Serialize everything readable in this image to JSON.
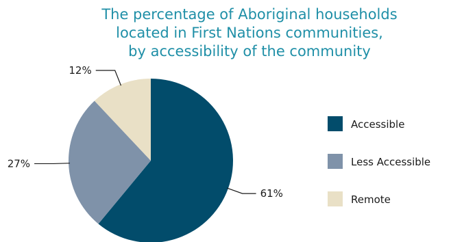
{
  "chart_data": {
    "type": "pie",
    "title_lines": [
      "The percentage of Aboriginal households",
      "located in First Nations communities,",
      "by accessibility of the community"
    ],
    "slices": [
      {
        "label": "Accessible",
        "value": 61,
        "value_label": "61%",
        "color": "#024c6b"
      },
      {
        "label": "Less Accessible",
        "value": 27,
        "value_label": "27%",
        "color": "#7f92a9"
      },
      {
        "label": "Remote",
        "value": 12,
        "value_label": "12%",
        "color": "#e9e0c6"
      }
    ],
    "legend_position": "right",
    "start_angle": "12 o'clock",
    "direction": "clockwise"
  }
}
